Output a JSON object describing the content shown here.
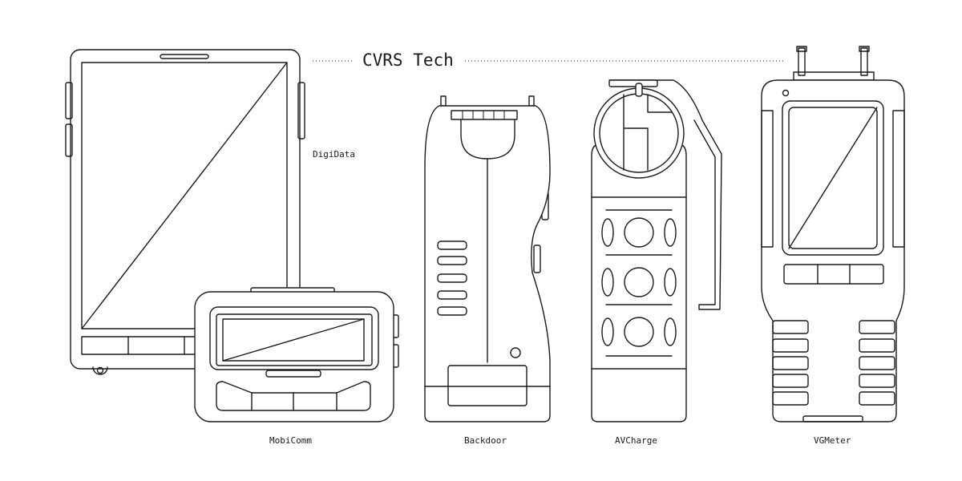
{
  "title": "CVRS Tech",
  "devices": {
    "digidata": "DigiData",
    "mobicomm": "MobiComm",
    "backdoor": "Backdoor",
    "avcharge": "AVCharge",
    "vgmeter": "VGMeter"
  },
  "colors": {
    "line": "#1a1a1a",
    "background": "#ffffff"
  }
}
